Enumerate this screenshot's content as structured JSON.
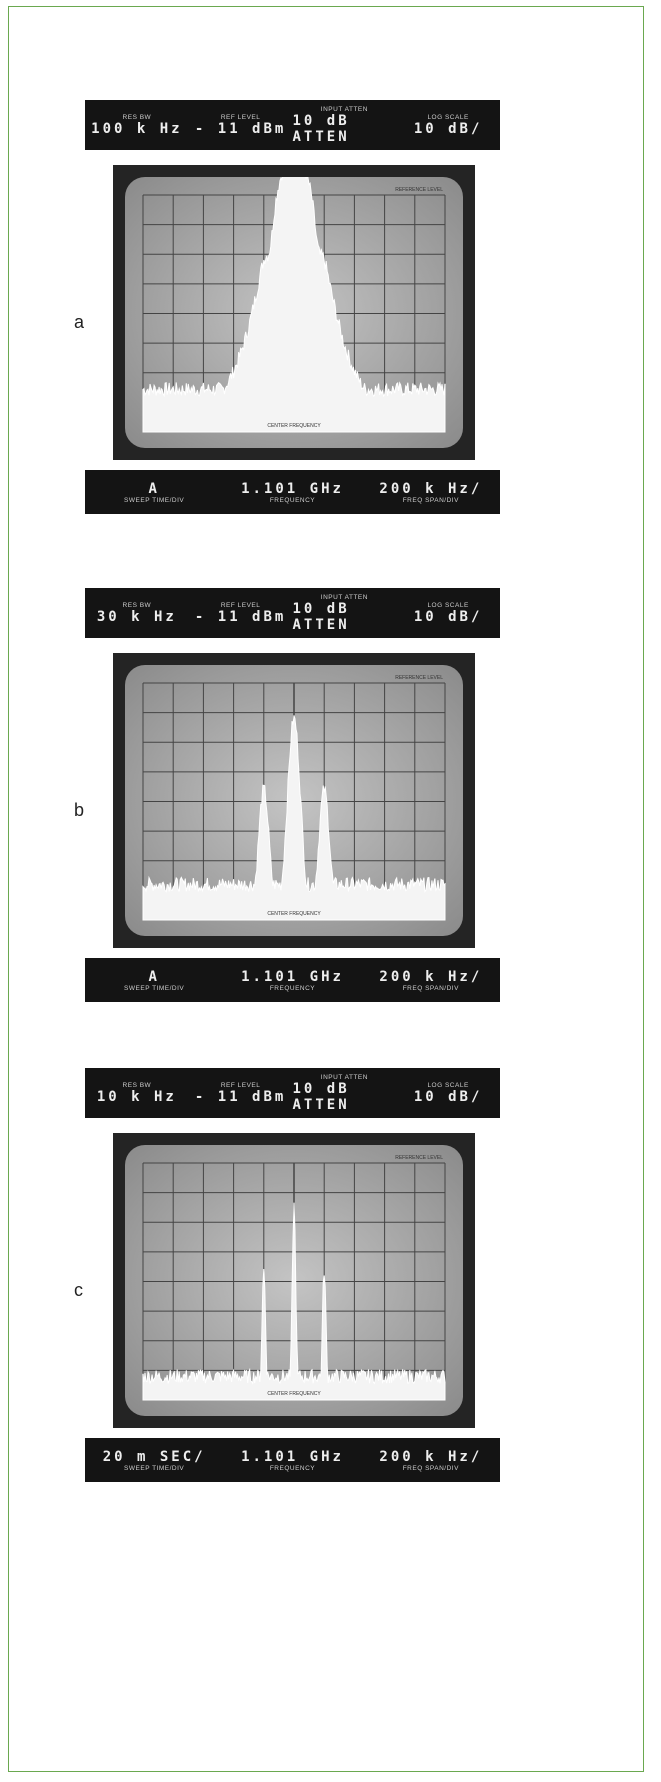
{
  "panels": [
    {
      "label": "a",
      "header": [
        {
          "caption": "RES BW",
          "value": "100 k Hz"
        },
        {
          "caption": "REF LEVEL",
          "value": "- 11 dBm"
        },
        {
          "caption": "INPUT ATTEN",
          "value": "10 dB ATTEN"
        },
        {
          "caption": "LOG SCALE",
          "value": "10 dB/"
        }
      ],
      "screen": {
        "reference": "REFERENCE LEVEL",
        "center": "CENTER FREQUENCY"
      },
      "footer": [
        {
          "value": "A",
          "caption": "SWEEP TIME/DIV"
        },
        {
          "value": "1.101 GHz",
          "caption": "FREQUENCY"
        },
        {
          "value": "200 k Hz/",
          "caption": "FREQ SPAN/DIV"
        }
      ]
    },
    {
      "label": "b",
      "header": [
        {
          "caption": "RES BW",
          "value": "30 k Hz"
        },
        {
          "caption": "REF LEVEL",
          "value": "- 11 dBm"
        },
        {
          "caption": "INPUT ATTEN",
          "value": "10 dB ATTEN"
        },
        {
          "caption": "LOG SCALE",
          "value": "10 dB/"
        }
      ],
      "screen": {
        "reference": "REFERENCE LEVEL",
        "center": "CENTER FREQUENCY"
      },
      "footer": [
        {
          "value": "A",
          "caption": "SWEEP TIME/DIV"
        },
        {
          "value": "1.101 GHz",
          "caption": "FREQUENCY"
        },
        {
          "value": "200 k Hz/",
          "caption": "FREQ SPAN/DIV"
        }
      ]
    },
    {
      "label": "c",
      "header": [
        {
          "caption": "RES BW",
          "value": "10 k Hz"
        },
        {
          "caption": "REF LEVEL",
          "value": "- 11 dBm"
        },
        {
          "caption": "INPUT ATTEN",
          "value": "10 dB ATTEN"
        },
        {
          "caption": "LOG SCALE",
          "value": "10 dB/"
        }
      ],
      "screen": {
        "reference": "REFERENCE LEVEL",
        "center": "CENTER FREQUENCY"
      },
      "footer": [
        {
          "value": "20 m SEC/",
          "caption": "SWEEP TIME/DIV"
        },
        {
          "value": "1.101 GHz",
          "caption": "FREQUENCY"
        },
        {
          "value": "200 k Hz/",
          "caption": "FREQ SPAN/DIV"
        }
      ]
    }
  ]
}
